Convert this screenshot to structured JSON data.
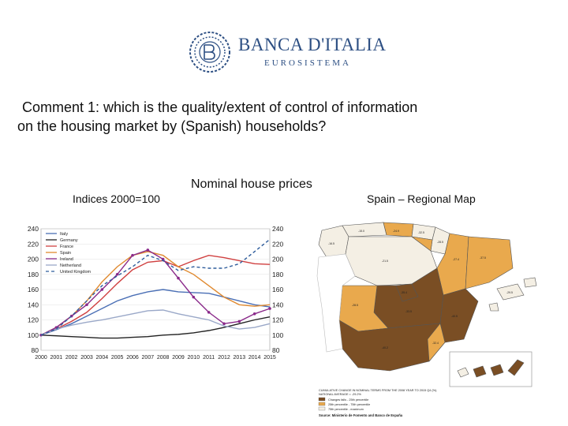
{
  "header": {
    "logo_name": "BANCA D'ITALIA",
    "logo_sub": "EUROSISTEMA",
    "logo_icon": "bdi-monogram-icon"
  },
  "comment": {
    "line1": "Comment 1: which is the quality/extent of control of information",
    "line2": "on the housing market by (Spanish) households?"
  },
  "chart_title": "Nominal house prices",
  "indices_label": "Indices 2000=100",
  "map": {
    "title": "Spain – Regional Map",
    "legend_lines": [
      "CUMULATIVE CHANGE IN NOMINAL TERMS FROM THE 2008 YEAR TO 2015 Q4 (%).",
      "NATIONAL AVERAGE = -29.2%",
      "Changes falls - 25th percentile",
      "25th percentile - 75th percentile",
      "75th percentile - maximum"
    ],
    "source": "Source: Ministerio de Fomento and Banco de España",
    "colors": {
      "low": "#f4efe4",
      "mid": "#e9a94d",
      "high": "#7a4e24"
    }
  },
  "chart_data": {
    "type": "line",
    "title": "Nominal house prices",
    "ylabel": "Indices 2000=100",
    "x": [
      2000,
      2001,
      2002,
      2003,
      2004,
      2005,
      2006,
      2007,
      2008,
      2009,
      2010,
      2011,
      2012,
      2013,
      2014,
      2015
    ],
    "x_tick_labels": [
      "2000",
      "2001",
      "2002",
      "2003",
      "2004",
      "2005",
      "2006",
      "2007",
      "2008",
      "2009",
      "2010",
      "2011",
      "2012",
      "2013",
      "2014",
      "2015"
    ],
    "left_axis": {
      "ylim": [
        80,
        240
      ],
      "ticks": [
        240,
        220,
        200,
        180,
        160,
        140,
        120,
        100,
        80
      ]
    },
    "right_axis": {
      "ylim": [
        80,
        240
      ],
      "ticks": [
        240,
        220,
        200,
        180,
        160,
        140,
        120,
        100,
        80
      ]
    },
    "legend_placement": "top-left",
    "series": [
      {
        "name": "Italy",
        "color": "#4a6fb5",
        "dash": "",
        "values": [
          100,
          107,
          115,
          125,
          135,
          145,
          152,
          157,
          160,
          157,
          156,
          155,
          150,
          145,
          140,
          137
        ]
      },
      {
        "name": "Germany",
        "color": "#222222",
        "dash": "",
        "values": [
          100,
          99,
          98,
          97,
          96,
          96,
          97,
          98,
          100,
          101,
          103,
          106,
          110,
          115,
          120,
          124
        ]
      },
      {
        "name": "France",
        "color": "#d04040",
        "dash": "",
        "values": [
          100,
          108,
          118,
          130,
          148,
          168,
          186,
          196,
          198,
          190,
          198,
          205,
          202,
          198,
          194,
          193
        ]
      },
      {
        "name": "Spain",
        "color": "#e08a30",
        "dash": "",
        "values": [
          100,
          110,
          125,
          145,
          170,
          190,
          205,
          210,
          205,
          190,
          180,
          165,
          150,
          140,
          138,
          140
        ]
      },
      {
        "name": "Ireland",
        "color": "#8a2a8a",
        "dash": "",
        "values": [
          100,
          110,
          125,
          140,
          160,
          180,
          205,
          212,
          200,
          175,
          150,
          130,
          115,
          118,
          128,
          135
        ]
      },
      {
        "name": "Netherland",
        "color": "#9aa8c8",
        "dash": "",
        "values": [
          100,
          108,
          113,
          117,
          120,
          124,
          128,
          132,
          133,
          128,
          124,
          120,
          112,
          108,
          110,
          115
        ]
      },
      {
        "name": "United Kingdom",
        "color": "#2f5d9c",
        "dash": "4,3",
        "values": [
          100,
          108,
          125,
          145,
          165,
          178,
          190,
          205,
          198,
          185,
          190,
          188,
          188,
          194,
          210,
          226
        ]
      }
    ]
  }
}
